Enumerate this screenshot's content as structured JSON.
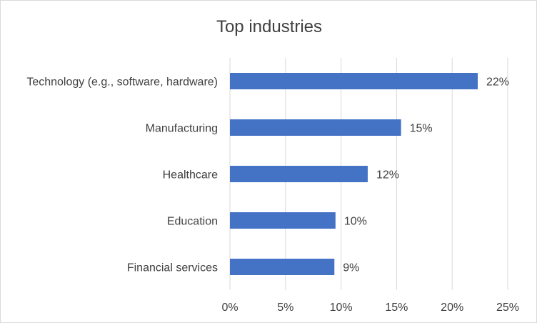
{
  "chart_data": {
    "type": "bar",
    "orientation": "horizontal",
    "title": "Top industries",
    "categories": [
      "Technology (e.g., software, hardware)",
      "Manufacturing",
      "Healthcare",
      "Education",
      "Financial services"
    ],
    "values": [
      22.3,
      15.4,
      12.4,
      9.5,
      9.4
    ],
    "data_labels": [
      "22%",
      "15%",
      "12%",
      "10%",
      "9%"
    ],
    "x_ticks": [
      "0%",
      "5%",
      "10%",
      "15%",
      "20%",
      "25%"
    ],
    "xlim": [
      0,
      25
    ],
    "grid": true,
    "legend": "none",
    "bar_color": "#4472C4"
  }
}
